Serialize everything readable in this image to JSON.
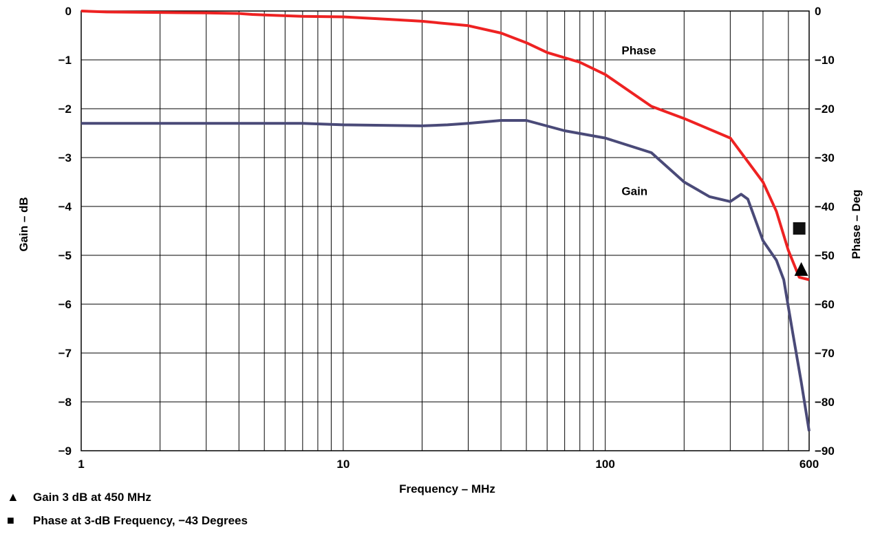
{
  "chart_data": {
    "type": "line",
    "xlabel": "Frequency – MHz",
    "ylabel_left": "Gain – dB",
    "ylabel_right": "Phase – Deg",
    "x_scale": "log",
    "xlim": [
      1,
      600
    ],
    "ylim_left": [
      -9,
      0
    ],
    "ylim_right": [
      -90,
      0
    ],
    "x_ticks": [
      {
        "value": 1,
        "label": "1"
      },
      {
        "value": 10,
        "label": "10"
      },
      {
        "value": 100,
        "label": "100"
      },
      {
        "value": 600,
        "label": "600"
      }
    ],
    "y_ticks_left": [
      "0",
      "−1",
      "−2",
      "−3",
      "−4",
      "−5",
      "−6",
      "−7",
      "−8",
      "−9"
    ],
    "y_ticks_right": [
      "0",
      "−10",
      "−20",
      "−30",
      "−40",
      "−50",
      "−60",
      "−70",
      "−80",
      "−90"
    ],
    "grid": true,
    "colors": {
      "phase": "#ee2222",
      "gain": "#4a4a78"
    },
    "series": [
      {
        "name": "Phase",
        "axis": "right",
        "label_at": [
          110,
          -8
        ],
        "x": [
          1,
          1.25,
          2,
          3,
          4,
          4.5,
          5,
          7,
          10,
          15,
          20,
          30,
          40,
          50,
          60,
          80,
          100,
          150,
          200,
          300,
          400,
          450,
          500,
          550,
          600
        ],
        "y": [
          0,
          -0.2,
          -0.3,
          -0.4,
          -0.5,
          -0.7,
          -0.8,
          -1.1,
          -1.2,
          -1.7,
          -2.1,
          -3,
          -4.5,
          -6.5,
          -8.5,
          -10.5,
          -13,
          -19.5,
          -22,
          -26,
          -35,
          -41,
          -49,
          -54.5,
          -55
        ]
      },
      {
        "name": "Gain",
        "axis": "left",
        "label_at": [
          110,
          -3.68
        ],
        "x": [
          1,
          2,
          7,
          10,
          20,
          25,
          30,
          40,
          50,
          70,
          100,
          150,
          200,
          250,
          300,
          330,
          350,
          400,
          450,
          480,
          520,
          560,
          600
        ],
        "y": [
          -2.3,
          -2.3,
          -2.3,
          -2.33,
          -2.35,
          -2.33,
          -2.3,
          -2.24,
          -2.24,
          -2.45,
          -2.6,
          -2.9,
          -3.5,
          -3.8,
          -3.9,
          -3.75,
          -3.85,
          -4.7,
          -5.1,
          -5.5,
          -6.6,
          -7.6,
          -8.6
        ]
      }
    ],
    "markers": [
      {
        "shape": "triangle",
        "x": 560,
        "y_left": -5.28,
        "legend": "Gain 3 dB at 450 MHz"
      },
      {
        "shape": "square",
        "x": 550,
        "y_right": -44.5,
        "legend": "Phase at 3-dB Frequency, −43 Degrees"
      }
    ]
  }
}
